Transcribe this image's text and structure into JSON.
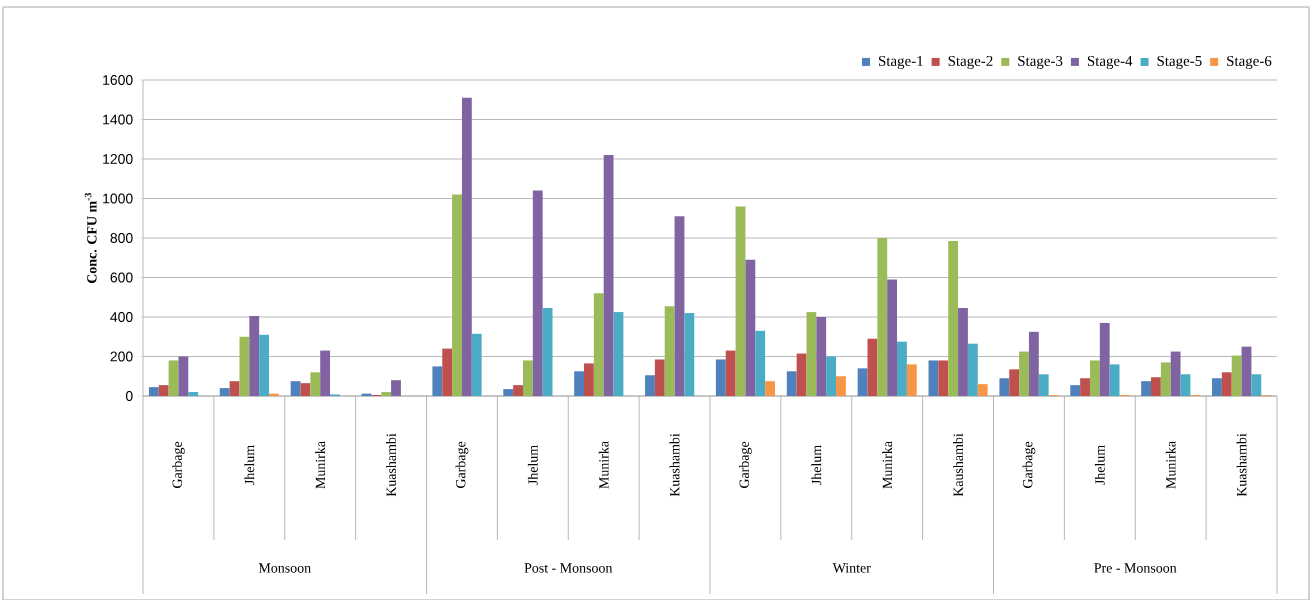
{
  "chart_data": {
    "type": "bar",
    "ylabel": "Conc. CFU m$^{-3}$",
    "categories": [
      "Garbage",
      "Jhelum",
      "Munirka",
      "Kuashambi",
      "Garbage",
      "Jhelum",
      "Munirka",
      "Kuashambi",
      "Garbage",
      "Jhelum",
      "Munirka",
      "Kaushambi",
      "Garbage",
      "Jhelum",
      "Munirka",
      "Kuashambi"
    ],
    "series": [
      {
        "name": "Stage-1",
        "color": "#4f81bd",
        "values": [
          45,
          40,
          75,
          12,
          150,
          35,
          125,
          105,
          185,
          125,
          140,
          180,
          90,
          55,
          75,
          90
        ]
      },
      {
        "name": "Stage-2",
        "color": "#c0504d",
        "values": [
          55,
          75,
          65,
          5,
          240,
          55,
          165,
          185,
          230,
          215,
          290,
          180,
          135,
          90,
          95,
          120
        ]
      },
      {
        "name": "Stage-3",
        "color": "#9bbb59",
        "values": [
          180,
          300,
          120,
          20,
          1020,
          180,
          520,
          455,
          960,
          425,
          800,
          785,
          225,
          180,
          170,
          205
        ]
      },
      {
        "name": "Stage-4",
        "color": "#8064a2",
        "values": [
          200,
          405,
          230,
          80,
          1510,
          1040,
          1220,
          910,
          690,
          400,
          590,
          445,
          325,
          370,
          225,
          250
        ]
      },
      {
        "name": "Stage-5",
        "color": "#4bacc6",
        "values": [
          20,
          310,
          8,
          0,
          315,
          445,
          425,
          420,
          330,
          200,
          275,
          265,
          110,
          160,
          110,
          110
        ]
      },
      {
        "name": "Stage-6",
        "color": "#f79646",
        "values": [
          0,
          12,
          0,
          0,
          0,
          0,
          0,
          0,
          75,
          100,
          160,
          60,
          5,
          5,
          5,
          5
        ]
      }
    ],
    "ylim": [
      0,
      1600
    ],
    "yticks": [
      0,
      200,
      400,
      600,
      800,
      1000,
      1200,
      1400,
      1600
    ],
    "grid": "y",
    "legend": "top right",
    "annotations": [
      "Monsoon",
      "Post - Monsoon",
      "Winter",
      "Pre - Monsoon"
    ]
  }
}
